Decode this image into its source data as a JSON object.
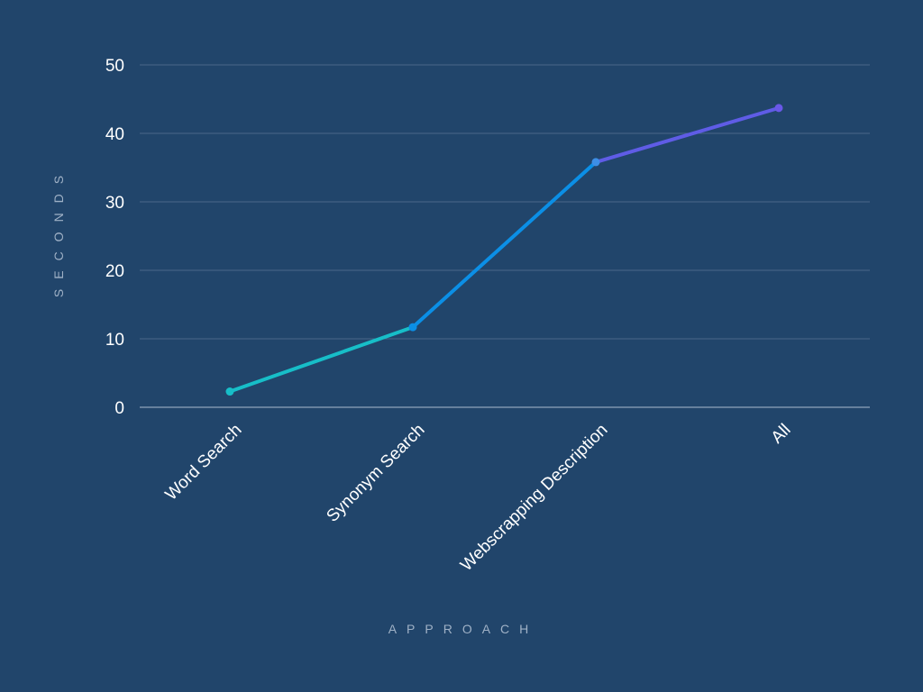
{
  "chart_data": {
    "type": "line",
    "categories": [
      "Word Search",
      "Synonym Search",
      "Webscrapping Description",
      "All"
    ],
    "values": [
      2.3,
      11.7,
      35.8,
      43.7
    ],
    "xlabel": "APPROACH",
    "ylabel": "SECONDS",
    "ylim": [
      0,
      50
    ],
    "yticks": [
      0,
      10,
      20,
      30,
      40,
      50
    ],
    "grid": true,
    "segment_colors": [
      "#17bec8",
      "#0b8fe6",
      "#5f5ce6"
    ],
    "point_colors": [
      "#17bec8",
      "#0b8fe6",
      "#3d8fe6",
      "#6a58e8"
    ],
    "background": "#21456b"
  }
}
